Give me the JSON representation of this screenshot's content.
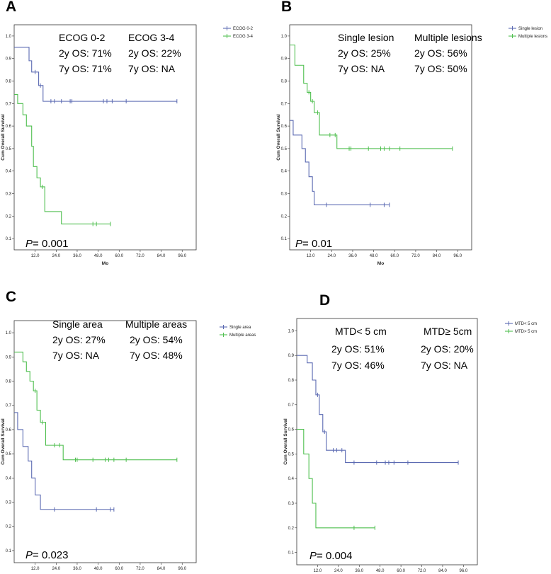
{
  "colors": {
    "series1": "#5b6ab2",
    "series2": "#4fbf4f",
    "axis": "#333333"
  },
  "chart_data": [
    {
      "type": "line",
      "panel_label": "A",
      "ylabel": "Cum Overall Survival",
      "xlabel": "Mo",
      "xlim": [
        0,
        104
      ],
      "ylim": [
        0.05,
        1.05
      ],
      "x_ticks": [
        "12.0",
        "24.0",
        "36.0",
        "48.0",
        "60.0",
        "72.0",
        "84.0",
        "96.0"
      ],
      "y_ticks": [
        "0.1",
        "0.2",
        "0.3",
        "0.4",
        "0.5",
        "0.6",
        "0.7",
        "0.8",
        "0.9",
        "1.0"
      ],
      "p_prefix": "P",
      "p_value": "= 0.001",
      "annotations": {
        "s1_title": "ECOG 0-2",
        "s1_2y": "2y OS: 71%",
        "s1_7y": "7y OS: 71%",
        "s2_title": "ECOG 3-4",
        "s2_2y": "2y OS: 22%",
        "s2_7y": "7y OS: NA"
      },
      "series": [
        {
          "name": "ECOG 0-2",
          "color": "#5b6ab2",
          "steps": [
            [
              0,
              0.95
            ],
            [
              8.5,
              0.89
            ],
            [
              10,
              0.84
            ],
            [
              14,
              0.78
            ],
            [
              16.5,
              0.71
            ],
            [
              93,
              0.71
            ]
          ],
          "censors": [
            [
              12,
              0.84
            ],
            [
              15,
              0.78
            ],
            [
              21,
              0.71
            ],
            [
              23,
              0.71
            ],
            [
              27,
              0.71
            ],
            [
              32,
              0.71
            ],
            [
              33,
              0.71
            ],
            [
              51,
              0.71
            ],
            [
              53,
              0.71
            ],
            [
              56,
              0.71
            ],
            [
              64,
              0.71
            ],
            [
              93,
              0.71
            ]
          ]
        },
        {
          "name": "ECOG 3-4",
          "color": "#4fbf4f",
          "steps": [
            [
              0,
              0.74
            ],
            [
              2,
              0.7
            ],
            [
              5,
              0.65
            ],
            [
              7,
              0.6
            ],
            [
              10,
              0.51
            ],
            [
              11,
              0.42
            ],
            [
              13,
              0.37
            ],
            [
              15,
              0.33
            ],
            [
              17.5,
              0.22
            ],
            [
              27,
              0.165
            ],
            [
              55,
              0.165
            ]
          ],
          "censors": [
            [
              16,
              0.33
            ],
            [
              45,
              0.165
            ],
            [
              47,
              0.165
            ],
            [
              55,
              0.165
            ]
          ]
        }
      ]
    },
    {
      "type": "line",
      "panel_label": "B",
      "ylabel": "Cum Overall Survival",
      "xlabel": "Mo",
      "xlim": [
        0,
        104
      ],
      "ylim": [
        0.05,
        1.05
      ],
      "x_ticks": [
        "12.0",
        "24.0",
        "36.0",
        "48.0",
        "60.0",
        "72.0",
        "84.0",
        "96.0"
      ],
      "y_ticks": [
        "0.1",
        "0.2",
        "0.3",
        "0.4",
        "0.5",
        "0.6",
        "0.7",
        "0.8",
        "0.9",
        "1.0"
      ],
      "p_prefix": "P",
      "p_value": "= 0.01",
      "annotations": {
        "s1_title": "Single lesion",
        "s1_2y": "2y OS: 25%",
        "s1_7y": "7y OS: NA",
        "s2_title": "Multiple lesions",
        "s2_2y": "2y OS: 56%",
        "s2_7y": "7y OS: 50%"
      },
      "series": [
        {
          "name": "Single lesion",
          "color": "#5b6ab2",
          "steps": [
            [
              0,
              0.625
            ],
            [
              2,
              0.56
            ],
            [
              7,
              0.5
            ],
            [
              9,
              0.44
            ],
            [
              11,
              0.375
            ],
            [
              13,
              0.31
            ],
            [
              14,
              0.25
            ],
            [
              57,
              0.25
            ]
          ],
          "censors": [
            [
              21,
              0.25
            ],
            [
              46,
              0.25
            ],
            [
              54,
              0.25
            ],
            [
              57,
              0.25
            ]
          ]
        },
        {
          "name": "Multiple lesions",
          "color": "#4fbf4f",
          "steps": [
            [
              0,
              0.96
            ],
            [
              3,
              0.87
            ],
            [
              8,
              0.79
            ],
            [
              10,
              0.75
            ],
            [
              12,
              0.71
            ],
            [
              14,
              0.66
            ],
            [
              17,
              0.56
            ],
            [
              27,
              0.5
            ],
            [
              93,
              0.5
            ]
          ],
          "censors": [
            [
              11,
              0.75
            ],
            [
              13,
              0.71
            ],
            [
              16,
              0.66
            ],
            [
              23,
              0.56
            ],
            [
              26,
              0.56
            ],
            [
              34,
              0.5
            ],
            [
              35,
              0.5
            ],
            [
              45,
              0.5
            ],
            [
              52,
              0.5
            ],
            [
              54,
              0.5
            ],
            [
              57,
              0.5
            ],
            [
              63,
              0.5
            ],
            [
              93,
              0.5
            ]
          ]
        }
      ]
    },
    {
      "type": "line",
      "panel_label": "C",
      "ylabel": "Cum Overall Survival",
      "xlabel": "Mo",
      "xlim": [
        0,
        104
      ],
      "ylim": [
        0.05,
        1.05
      ],
      "x_ticks": [
        "12.0",
        "24.0",
        "36.0",
        "48.0",
        "60.0",
        "72.0",
        "84.0",
        "96.0"
      ],
      "y_ticks": [
        "0.1",
        "0.2",
        "0.3",
        "0.4",
        "0.5",
        "0.6",
        "0.7",
        "0.8",
        "0.9",
        "1.0"
      ],
      "p_prefix": "P",
      "p_value": "= 0.023",
      "annotations": {
        "s1_title": "Single area",
        "s1_2y": "2y OS: 27%",
        "s1_7y": "7y OS: NA",
        "s2_title": "Multiple areas",
        "s2_2y": "2y OS: 54%",
        "s2_7y": "7y OS: 48%"
      },
      "series": [
        {
          "name": "Single area",
          "color": "#5b6ab2",
          "steps": [
            [
              0,
              0.67
            ],
            [
              2,
              0.6
            ],
            [
              5,
              0.53
            ],
            [
              8,
              0.47
            ],
            [
              10,
              0.4
            ],
            [
              12,
              0.33
            ],
            [
              15,
              0.27
            ],
            [
              57,
              0.27
            ]
          ],
          "censors": [
            [
              23,
              0.27
            ],
            [
              47,
              0.27
            ],
            [
              55,
              0.27
            ],
            [
              57,
              0.27
            ]
          ]
        },
        {
          "name": "Multiple areas",
          "color": "#4fbf4f",
          "steps": [
            [
              0,
              0.92
            ],
            [
              5,
              0.88
            ],
            [
              7,
              0.84
            ],
            [
              9,
              0.8
            ],
            [
              11,
              0.76
            ],
            [
              13,
              0.68
            ],
            [
              15,
              0.63
            ],
            [
              18,
              0.535
            ],
            [
              28,
              0.475
            ],
            [
              93,
              0.475
            ]
          ],
          "censors": [
            [
              12,
              0.76
            ],
            [
              16,
              0.63
            ],
            [
              23,
              0.535
            ],
            [
              26,
              0.535
            ],
            [
              35,
              0.475
            ],
            [
              36,
              0.475
            ],
            [
              45,
              0.475
            ],
            [
              52,
              0.475
            ],
            [
              54,
              0.475
            ],
            [
              57,
              0.475
            ],
            [
              64,
              0.475
            ],
            [
              93,
              0.475
            ]
          ]
        }
      ]
    },
    {
      "type": "line",
      "panel_label": "D",
      "ylabel": "Cum Overall Survival",
      "xlabel": "Mo",
      "xlim": [
        0,
        104
      ],
      "ylim": [
        0.05,
        1.05
      ],
      "x_ticks": [
        "12.0",
        "24.0",
        "36.0",
        "48.0",
        "60.0",
        "72.0",
        "84.0",
        "96.0"
      ],
      "y_ticks": [
        "0.1",
        "0.2",
        "0.3",
        "0.4",
        "0.5",
        "0.6",
        "0.7",
        "0.8",
        "0.9",
        "1.0"
      ],
      "p_prefix": "P",
      "p_value": "= 0.004",
      "annotations": {
        "s1_title": "MTD< 5 cm",
        "s1_2y": "2y OS: 51%",
        "s1_7y": "7y OS: 46%",
        "s2_title": "MTD≥ 5cm",
        "s2_2y": "2y OS: 20%",
        "s2_7y": "7y OS: NA"
      },
      "series": [
        {
          "name": "MTD< 5 cm",
          "color": "#5b6ab2",
          "steps": [
            [
              0,
              0.9
            ],
            [
              6,
              0.87
            ],
            [
              9,
              0.8
            ],
            [
              11,
              0.74
            ],
            [
              13,
              0.66
            ],
            [
              15,
              0.59
            ],
            [
              17,
              0.515
            ],
            [
              28,
              0.465
            ],
            [
              93,
              0.465
            ]
          ],
          "censors": [
            [
              12,
              0.74
            ],
            [
              16,
              0.59
            ],
            [
              21,
              0.515
            ],
            [
              23,
              0.515
            ],
            [
              26,
              0.515
            ],
            [
              33,
              0.465
            ],
            [
              46,
              0.465
            ],
            [
              51,
              0.465
            ],
            [
              53,
              0.465
            ],
            [
              56,
              0.465
            ],
            [
              64,
              0.465
            ],
            [
              93,
              0.465
            ]
          ]
        },
        {
          "name": "MTD> 5 cm",
          "color": "#4fbf4f",
          "steps": [
            [
              0,
              0.6
            ],
            [
              4,
              0.5
            ],
            [
              7,
              0.4
            ],
            [
              9,
              0.3
            ],
            [
              11,
              0.2
            ],
            [
              45,
              0.2
            ]
          ],
          "censors": [
            [
              33,
              0.2
            ],
            [
              45,
              0.2
            ]
          ]
        }
      ]
    }
  ]
}
